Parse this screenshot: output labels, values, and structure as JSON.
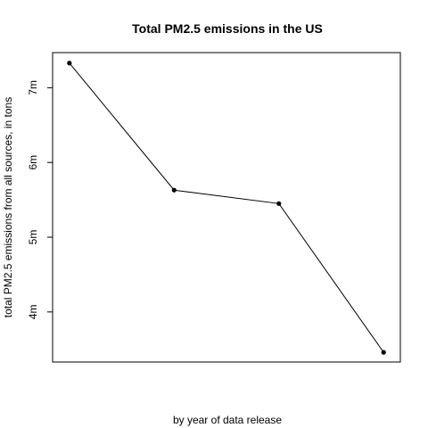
{
  "chart_data": {
    "type": "line",
    "title": "Total PM2.5 emissions in the US",
    "xlabel": "by year of data release",
    "ylabel": "total PM2.5 emissions from all sources, in tons",
    "x": [
      1,
      2,
      3,
      4
    ],
    "series": [
      {
        "values": [
          7.33,
          5.63,
          5.45,
          3.46
        ]
      }
    ],
    "xlim": [
      0.84,
      4.16
    ],
    "ylim": [
      3.33,
      7.47
    ],
    "yticks": [
      4,
      5,
      6,
      7
    ],
    "ytick_labels": [
      "4m",
      "5m",
      "6m",
      "7m"
    ],
    "grid": false,
    "legend": "none",
    "colors": {
      "line": "#000000",
      "points": "#000000",
      "frame": "#000000"
    }
  }
}
